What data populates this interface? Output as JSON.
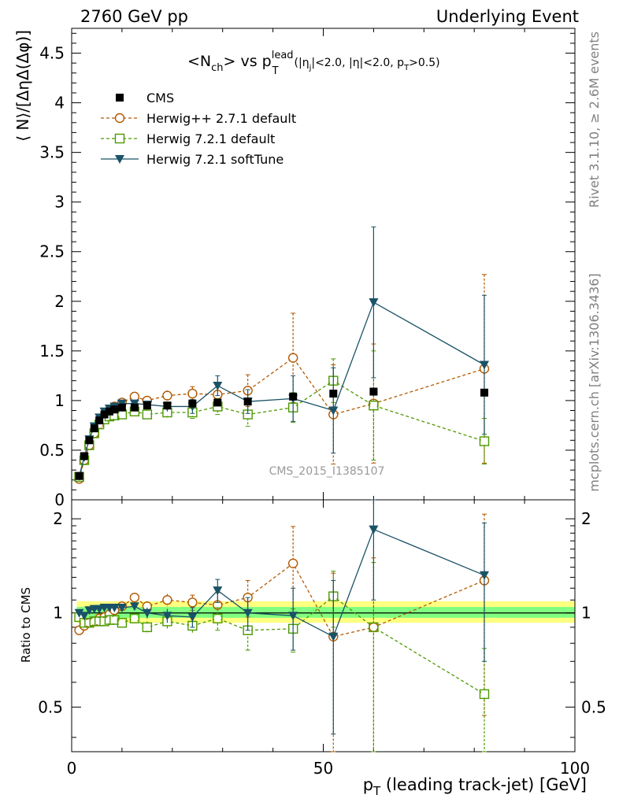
{
  "header": {
    "left": "2760 GeV pp",
    "right": "Underlying Event"
  },
  "title": {
    "main": "<N",
    "sub_ch": "ch",
    "mid": "> vs p",
    "sub_T": "T",
    "sup_lead": "lead",
    "cuts": "(|η",
    "sub_j": "j",
    "cuts2": "|<2.0, |η|<2.0, p",
    "sub_T2": "T",
    "cuts3": ">0.5)"
  },
  "ylabel_main": "⟨ N⟩/[ΔηΔ(Δφ)]",
  "ylabel_ratio": "Ratio to CMS",
  "xlabel": "p",
  "xlabel_sub": "T",
  "xlabel_rest": " (leading track-jet) [GeV]",
  "watermark": "CMS_2015_I1385107",
  "side_top": "Rivet 3.1.10, ≥ 2.6M events",
  "side_bottom": "mcplots.cern.ch [arXiv:1306.3436]",
  "legend": [
    "CMS",
    "Herwig++ 2.7.1 default",
    "Herwig 7.2.1 default",
    "Herwig 7.2.1 softTune"
  ],
  "colors": {
    "cms": "#000000",
    "herwigpp": "#b35900",
    "herwig7": "#4d9900",
    "softtune": "#1a5266",
    "band_outer": "#ffff80",
    "band_inner": "#80ff80"
  },
  "chart_data": {
    "type": "scatter",
    "x": [
      1.5,
      2.5,
      3.5,
      4.5,
      5.5,
      6.5,
      7.5,
      8.5,
      10,
      12.5,
      15,
      19,
      24,
      29,
      35,
      44,
      52,
      60,
      82
    ],
    "xlim": [
      0,
      100
    ],
    "xticks": [
      0,
      50,
      100
    ],
    "main": {
      "ylim": [
        0,
        4.75
      ],
      "yticks": [
        0,
        0.5,
        1,
        1.5,
        2,
        2.5,
        3,
        3.5,
        4,
        4.5
      ],
      "yticklabels": [
        "0",
        "0.5",
        "1",
        "1.5",
        "2",
        "2.5",
        "3",
        "3.5",
        "4",
        "4.5"
      ],
      "series": [
        {
          "name": "CMS",
          "values": [
            0.24,
            0.44,
            0.6,
            0.72,
            0.8,
            0.86,
            0.89,
            0.91,
            0.93,
            0.93,
            0.95,
            0.95,
            0.97,
            0.98,
            0.99,
            1.04,
            1.07,
            1.09,
            1.08
          ],
          "err": [
            0.02,
            0.02,
            0.02,
            0.02,
            0.02,
            0.02,
            0.02,
            0.02,
            0.02,
            0.02,
            0.02,
            0.02,
            0.02,
            0.02,
            0.02,
            0.02,
            0.02,
            0.02,
            0.02
          ]
        },
        {
          "name": "Herwig++ 2.7.1 default",
          "values": [
            0.21,
            0.4,
            0.55,
            0.67,
            0.77,
            0.84,
            0.9,
            0.94,
            0.98,
            1.04,
            1.0,
            1.05,
            1.07,
            1.06,
            1.1,
            1.43,
            0.86,
            0.97,
            1.32
          ],
          "err": [
            0.01,
            0.01,
            0.01,
            0.01,
            0.01,
            0.01,
            0.01,
            0.01,
            0.02,
            0.03,
            0.04,
            0.05,
            0.07,
            0.1,
            0.16,
            0.45,
            0.5,
            0.6,
            0.95
          ]
        },
        {
          "name": "Herwig 7.2.1 default",
          "values": [
            0.23,
            0.4,
            0.55,
            0.67,
            0.76,
            0.81,
            0.84,
            0.85,
            0.86,
            0.89,
            0.86,
            0.88,
            0.88,
            0.94,
            0.86,
            0.93,
            1.2,
            0.95,
            0.59
          ],
          "err": [
            0.01,
            0.01,
            0.01,
            0.01,
            0.01,
            0.01,
            0.01,
            0.01,
            0.02,
            0.03,
            0.04,
            0.05,
            0.06,
            0.08,
            0.12,
            0.15,
            0.22,
            0.55,
            0.23
          ]
        },
        {
          "name": "Herwig 7.2.1 softTune",
          "values": [
            0.24,
            0.43,
            0.61,
            0.74,
            0.83,
            0.89,
            0.92,
            0.94,
            0.97,
            0.97,
            0.96,
            0.94,
            0.94,
            1.15,
            0.99,
            1.02,
            0.9,
            1.99,
            1.36
          ],
          "err": [
            0.01,
            0.01,
            0.01,
            0.01,
            0.01,
            0.01,
            0.01,
            0.01,
            0.02,
            0.03,
            0.04,
            0.05,
            0.07,
            0.1,
            0.12,
            0.23,
            0.43,
            0.76,
            0.7
          ]
        }
      ]
    },
    "ratio": {
      "ylim": [
        0.36,
        2.3
      ],
      "yticks": [
        0.5,
        1,
        2
      ],
      "yticklabels": [
        "0.5",
        "1",
        "2"
      ],
      "band": {
        "x": [
          1,
          100
        ],
        "outer": [
          0.93,
          1.09
        ],
        "inner": [
          0.965,
          1.045
        ]
      },
      "series": [
        {
          "name": "Herwig++ 2.7.1 default",
          "values": [
            0.88,
            0.91,
            0.93,
            0.94,
            0.96,
            0.97,
            0.99,
            1.02,
            1.05,
            1.12,
            1.05,
            1.1,
            1.08,
            1.06,
            1.12,
            1.44,
            0.84,
            0.9,
            1.27
          ],
          "err": [
            0.01,
            0.01,
            0.01,
            0.01,
            0.01,
            0.01,
            0.02,
            0.02,
            0.02,
            0.03,
            0.04,
            0.05,
            0.06,
            0.1,
            0.15,
            0.45,
            0.5,
            0.6,
            0.8
          ]
        },
        {
          "name": "Herwig 7.2.1 default",
          "values": [
            0.97,
            0.93,
            0.93,
            0.94,
            0.94,
            0.94,
            0.95,
            0.95,
            0.93,
            0.96,
            0.9,
            0.94,
            0.91,
            0.96,
            0.88,
            0.89,
            1.13,
            0.9,
            0.55
          ],
          "err": [
            0.01,
            0.01,
            0.01,
            0.01,
            0.01,
            0.01,
            0.02,
            0.02,
            0.02,
            0.03,
            0.04,
            0.05,
            0.05,
            0.08,
            0.12,
            0.14,
            0.23,
            0.55,
            0.22
          ]
        },
        {
          "name": "Herwig 7.2.1 softTune",
          "values": [
            1.0,
            0.98,
            1.02,
            1.03,
            1.03,
            1.04,
            1.04,
            1.04,
            1.04,
            1.05,
            1.0,
            0.98,
            0.97,
            1.18,
            1.0,
            0.98,
            0.84,
            1.85,
            1.32
          ],
          "err": [
            0.01,
            0.01,
            0.01,
            0.01,
            0.01,
            0.01,
            0.02,
            0.02,
            0.02,
            0.03,
            0.04,
            0.05,
            0.07,
            0.1,
            0.12,
            0.22,
            0.43,
            0.75,
            0.62
          ]
        }
      ]
    }
  }
}
